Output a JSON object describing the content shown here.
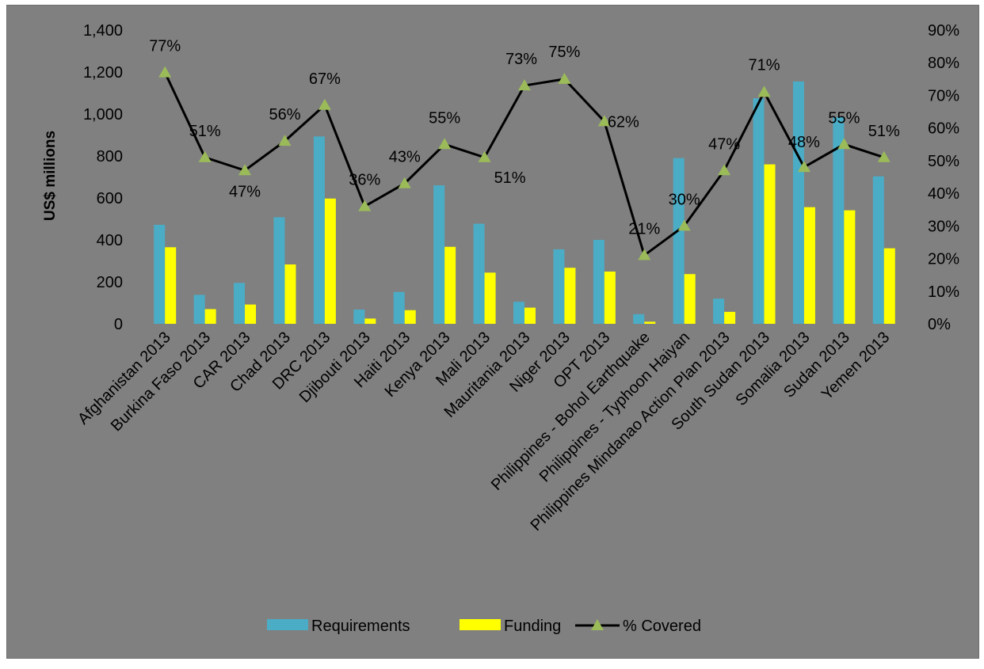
{
  "chart_data": {
    "type": "bar",
    "title": "",
    "ylabel": "US$ millions",
    "y2label": "",
    "ylim": [
      0,
      1400
    ],
    "y2lim": [
      0,
      90
    ],
    "yticks": [
      "0",
      "200",
      "400",
      "600",
      "800",
      "1,000",
      "1,200",
      "1,400"
    ],
    "y2ticks": [
      "0%",
      "10%",
      "20%",
      "30%",
      "40%",
      "50%",
      "60%",
      "70%",
      "80%",
      "90%"
    ],
    "grid": false,
    "legend_position": "bottom",
    "categories": [
      "Afghanistan 2013",
      "Burkina Faso 2013",
      "CAR 2013",
      "Chad 2013",
      "DRC 2013",
      "Djibouti 2013",
      "Haiti 2013",
      "Kenya 2013",
      "Mali 2013",
      "Mauritania 2013",
      "Niger 2013",
      "OPT 2013",
      "Philippines - Bohol Earthquake",
      "Philippines - Typhoon Haiyan",
      "Philippines Mindanao Action Plan 2013",
      "South Sudan 2013",
      "Somalia 2013",
      "Sudan 2013",
      "Yemen 2013"
    ],
    "series": [
      {
        "name": "Requirements",
        "type": "bar",
        "color": "#4bacc6",
        "values": [
          472,
          138,
          195,
          508,
          893,
          68,
          152,
          660,
          477,
          105,
          355,
          400,
          46,
          790,
          120,
          1075,
          1155,
          985,
          703
        ]
      },
      {
        "name": "Funding",
        "type": "bar",
        "color": "#ffff00",
        "values": [
          365,
          70,
          92,
          283,
          597,
          25,
          65,
          367,
          244,
          77,
          267,
          249,
          10,
          237,
          57,
          760,
          556,
          541,
          360
        ]
      },
      {
        "name": "% Covered",
        "type": "line",
        "axis": "right",
        "color": "#000000",
        "marker_color": "#9bbb59",
        "values": [
          77,
          51,
          47,
          56,
          67,
          36,
          43,
          55,
          51,
          73,
          75,
          62,
          21,
          30,
          47,
          71,
          48,
          55,
          51
        ],
        "labels": [
          "77%",
          "51%",
          "47%",
          "56%",
          "67%",
          "36%",
          "43%",
          "55%",
          "51%",
          "73%",
          "75%",
          "62%",
          "21%",
          "30%",
          "47%",
          "71%",
          "48%",
          "55%",
          "51%"
        ]
      }
    ]
  }
}
